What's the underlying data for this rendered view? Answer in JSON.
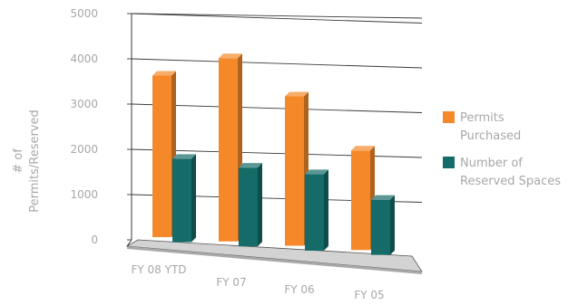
{
  "chart_data": {
    "type": "bar",
    "title": "",
    "ylabel": "# of Permits/Reserved",
    "ylabel_lines": [
      "# of",
      "Permits/Reserved"
    ],
    "xlabel": "",
    "ylim": [
      0,
      5000
    ],
    "yticks": [
      "0",
      "1000",
      "2000",
      "3000",
      "4000",
      "5000"
    ],
    "ytick_values": [
      0,
      1000,
      2000,
      3000,
      4000,
      5000
    ],
    "categories": [
      "FY 08 YTD",
      "FY 07",
      "FY 06",
      "FY 05"
    ],
    "series": [
      {
        "name": "Permits Purchased",
        "label_lines": [
          "Permits",
          "Purchased"
        ],
        "color": "#f5892a",
        "values": [
          3570,
          4050,
          3300,
          2200
        ]
      },
      {
        "name": "Number of Reserved Spaces",
        "label_lines": [
          "Number of",
          "Reserved Spaces"
        ],
        "color": "#146b68",
        "values": [
          1840,
          1740,
          1690,
          1220
        ]
      }
    ],
    "grid": true,
    "legend": "right",
    "style": "3d"
  }
}
